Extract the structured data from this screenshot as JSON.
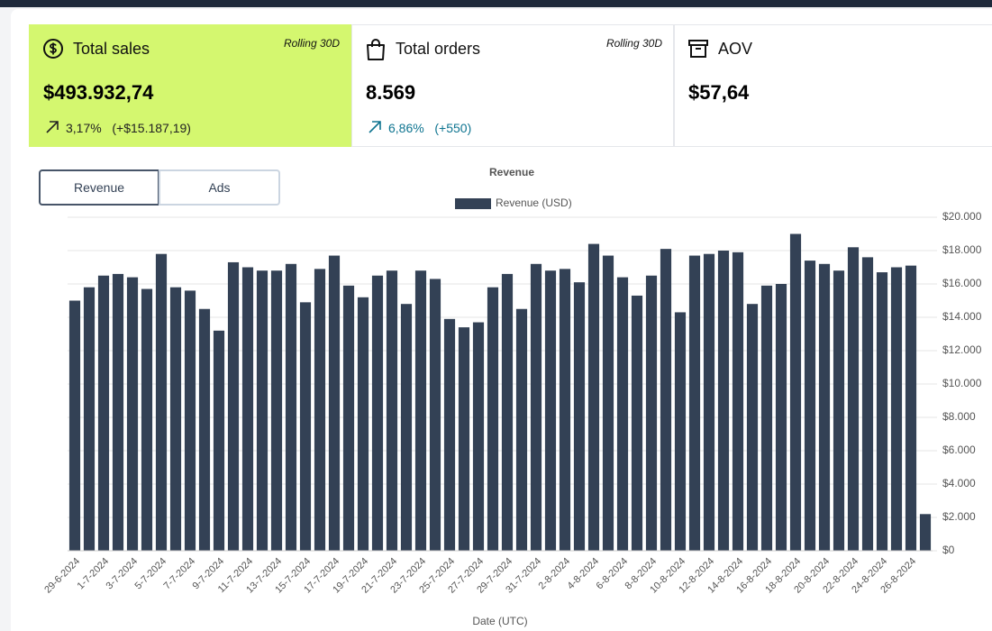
{
  "cards": [
    {
      "title": "Total sales",
      "period": "Rolling 30D",
      "value": "$493.932,74",
      "change_pct": "3,17%",
      "change_abs": "(+$15.187,19)"
    },
    {
      "title": "Total orders",
      "period": "Rolling 30D",
      "value": "8.569",
      "change_pct": "6,86%",
      "change_abs": "(+550)"
    },
    {
      "title": "AOV",
      "value": "$57,64"
    }
  ],
  "tabs": [
    "Revenue",
    "Ads"
  ],
  "chart_data": {
    "type": "bar",
    "title": "Revenue",
    "x_label": "Date (UTC)",
    "categories": [
      "29-6-2024",
      null,
      "1-7-2024",
      null,
      "3-7-2024",
      null,
      "5-7-2024",
      null,
      "7-7-2024",
      null,
      "9-7-2024",
      null,
      "11-7-2024",
      null,
      "13-7-2024",
      null,
      "15-7-2024",
      null,
      "17-7-2024",
      null,
      "19-7-2024",
      null,
      "21-7-2024",
      null,
      "23-7-2024",
      null,
      "25-7-2024",
      null,
      "27-7-2024",
      null,
      "29-7-2024",
      null,
      "31-7-2024",
      null,
      "2-8-2024",
      null,
      "4-8-2024",
      null,
      "6-8-2024",
      null,
      "8-8-2024",
      null,
      "10-8-2024",
      null,
      "12-8-2024",
      null,
      "14-8-2024",
      null,
      "16-8-2024",
      null,
      "18-8-2024",
      null,
      "20-8-2024",
      null,
      "22-8-2024",
      null,
      "24-8-2024",
      null,
      "26-8-2024",
      null
    ],
    "series": [
      {
        "name": "Revenue (USD)",
        "color": "#334155",
        "values": [
          15000,
          15800,
          16500,
          16600,
          16400,
          15700,
          17800,
          15800,
          15600,
          14500,
          13200,
          17300,
          17000,
          16800,
          16800,
          17200,
          14900,
          16900,
          17700,
          15900,
          15200,
          16500,
          16800,
          14800,
          16800,
          16300,
          13900,
          13400,
          13700,
          15800,
          16600,
          14500,
          17200,
          16800,
          16900,
          16100,
          18400,
          17700,
          16400,
          15300,
          16500,
          18100,
          14300,
          17700,
          17800,
          18000,
          17900,
          14800,
          15900,
          16000,
          19000,
          17400,
          17200,
          16800,
          18200,
          17600,
          16700,
          17000,
          17100,
          2200
        ]
      }
    ],
    "ylim": [
      0,
      20000
    ],
    "yticks": [
      {
        "value": 0,
        "label": "$0"
      },
      {
        "value": 2000,
        "label": "$2.000"
      },
      {
        "value": 4000,
        "label": "$4.000"
      },
      {
        "value": 6000,
        "label": "$6.000"
      },
      {
        "value": 8000,
        "label": "$8.000"
      },
      {
        "value": 10000,
        "label": "$10.000"
      },
      {
        "value": 12000,
        "label": "$12.000"
      },
      {
        "value": 14000,
        "label": "$14.000"
      },
      {
        "value": 16000,
        "label": "$16.000"
      },
      {
        "value": 18000,
        "label": "$18.000"
      },
      {
        "value": 20000,
        "label": "$20.000"
      }
    ],
    "grid": true
  }
}
